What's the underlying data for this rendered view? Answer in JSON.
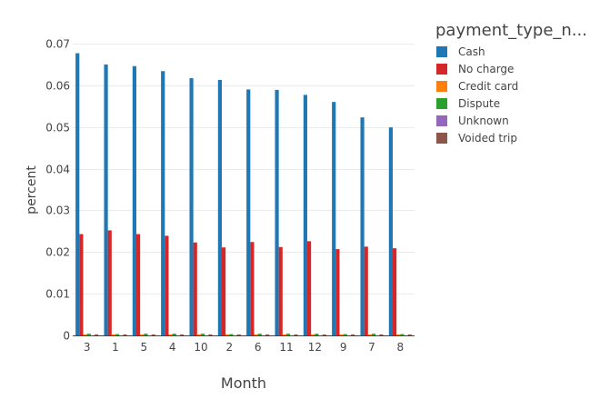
{
  "chart_data": {
    "type": "bar",
    "title": "",
    "xlabel": "Month",
    "ylabel": "percent",
    "legend_title": "payment_type_n...",
    "legend_position": "top-right",
    "grid": true,
    "ylim": [
      0,
      0.07
    ],
    "yticks": [
      "0",
      "0.01",
      "0.02",
      "0.03",
      "0.04",
      "0.05",
      "0.06",
      "0.07"
    ],
    "ytick_values": [
      0,
      0.01,
      0.02,
      0.03,
      0.04,
      0.05,
      0.06,
      0.07
    ],
    "categories": [
      "3",
      "1",
      "5",
      "4",
      "10",
      "2",
      "6",
      "11",
      "12",
      "9",
      "7",
      "8"
    ],
    "series": [
      {
        "name": "Cash",
        "color": "#1f77b4",
        "values": [
          0.0677,
          0.065,
          0.0646,
          0.0634,
          0.0617,
          0.0613,
          0.059,
          0.0589,
          0.0577,
          0.056,
          0.0523,
          0.0499
        ]
      },
      {
        "name": "No charge",
        "color": "#d62728",
        "values": [
          0.0243,
          0.0252,
          0.0243,
          0.0239,
          0.0223,
          0.0211,
          0.0224,
          0.0212,
          0.0226,
          0.0207,
          0.0213,
          0.0209
        ]
      },
      {
        "name": "Credit card",
        "color": "#ff7f0e",
        "values": [
          0.0002,
          0.0002,
          0.0002,
          0.0002,
          0.0002,
          0.0002,
          0.0002,
          0.0002,
          0.0002,
          0.0002,
          0.0002,
          0.0002
        ]
      },
      {
        "name": "Dispute",
        "color": "#2ca02c",
        "values": [
          0.0004,
          0.0003,
          0.0004,
          0.0004,
          0.0004,
          0.0003,
          0.0004,
          0.0004,
          0.0004,
          0.0003,
          0.0004,
          0.0003
        ]
      },
      {
        "name": "Unknown",
        "color": "#9467bd",
        "values": [
          0,
          0,
          0,
          0,
          0,
          0,
          0,
          0,
          0,
          0,
          0,
          0
        ]
      },
      {
        "name": "Voided trip",
        "color": "#8c564b",
        "values": [
          5e-05,
          5e-05,
          5e-05,
          5e-05,
          5e-05,
          5e-05,
          5e-05,
          5e-05,
          5e-05,
          5e-05,
          5e-05,
          5e-05
        ]
      }
    ]
  }
}
